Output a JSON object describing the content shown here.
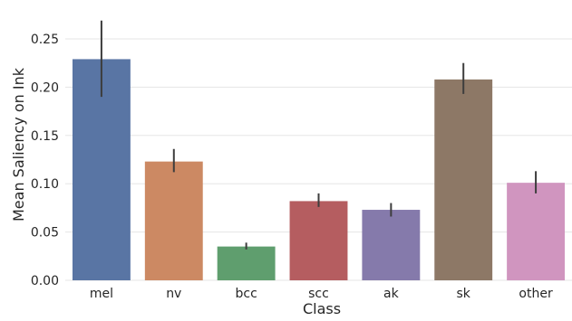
{
  "chart_data": {
    "type": "bar",
    "title": "",
    "xlabel": "Class",
    "ylabel": "Mean Saliency on Ink",
    "categories": [
      "mel",
      "nv",
      "bcc",
      "scc",
      "ak",
      "sk",
      "other"
    ],
    "values": [
      0.229,
      0.123,
      0.035,
      0.082,
      0.073,
      0.208,
      0.101
    ],
    "error_low": [
      0.19,
      0.112,
      0.032,
      0.076,
      0.066,
      0.193,
      0.09
    ],
    "error_high": [
      0.269,
      0.136,
      0.039,
      0.09,
      0.08,
      0.225,
      0.113
    ],
    "colors": [
      "#5975a4",
      "#cc8963",
      "#5f9e6e",
      "#b55d60",
      "#857aab",
      "#8d7866",
      "#d095bf"
    ],
    "ylim": [
      0,
      0.27
    ],
    "yticks": [
      "0.00",
      "0.05",
      "0.10",
      "0.15",
      "0.20",
      "0.25"
    ],
    "grid": true,
    "gridColor": "#e5e5e5",
    "errorColor": "#3d3d3d"
  }
}
